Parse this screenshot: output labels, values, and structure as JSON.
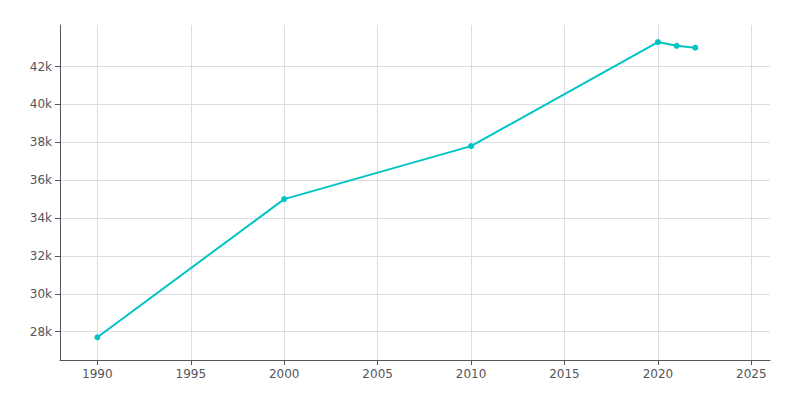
{
  "chart_data": {
    "type": "line",
    "x": [
      1990,
      2000,
      2010,
      2020,
      2021,
      2022
    ],
    "values": [
      27700,
      35000,
      37800,
      43300,
      43100,
      43000
    ],
    "color": "#00C4C4",
    "marker": "circle",
    "xlim": [
      1988,
      2026
    ],
    "xticks": [
      1990,
      1995,
      2000,
      2005,
      2010,
      2015,
      2020,
      2025
    ],
    "ylim": [
      26500,
      44200
    ],
    "yticks": [
      {
        "value": 28000,
        "label": "28k"
      },
      {
        "value": 30000,
        "label": "30k"
      },
      {
        "value": 32000,
        "label": "32k"
      },
      {
        "value": 34000,
        "label": "34k"
      },
      {
        "value": 36000,
        "label": "36k"
      },
      {
        "value": 38000,
        "label": "38k"
      },
      {
        "value": 40000,
        "label": "40k"
      },
      {
        "value": 42000,
        "label": "42k"
      }
    ],
    "grid": true
  }
}
